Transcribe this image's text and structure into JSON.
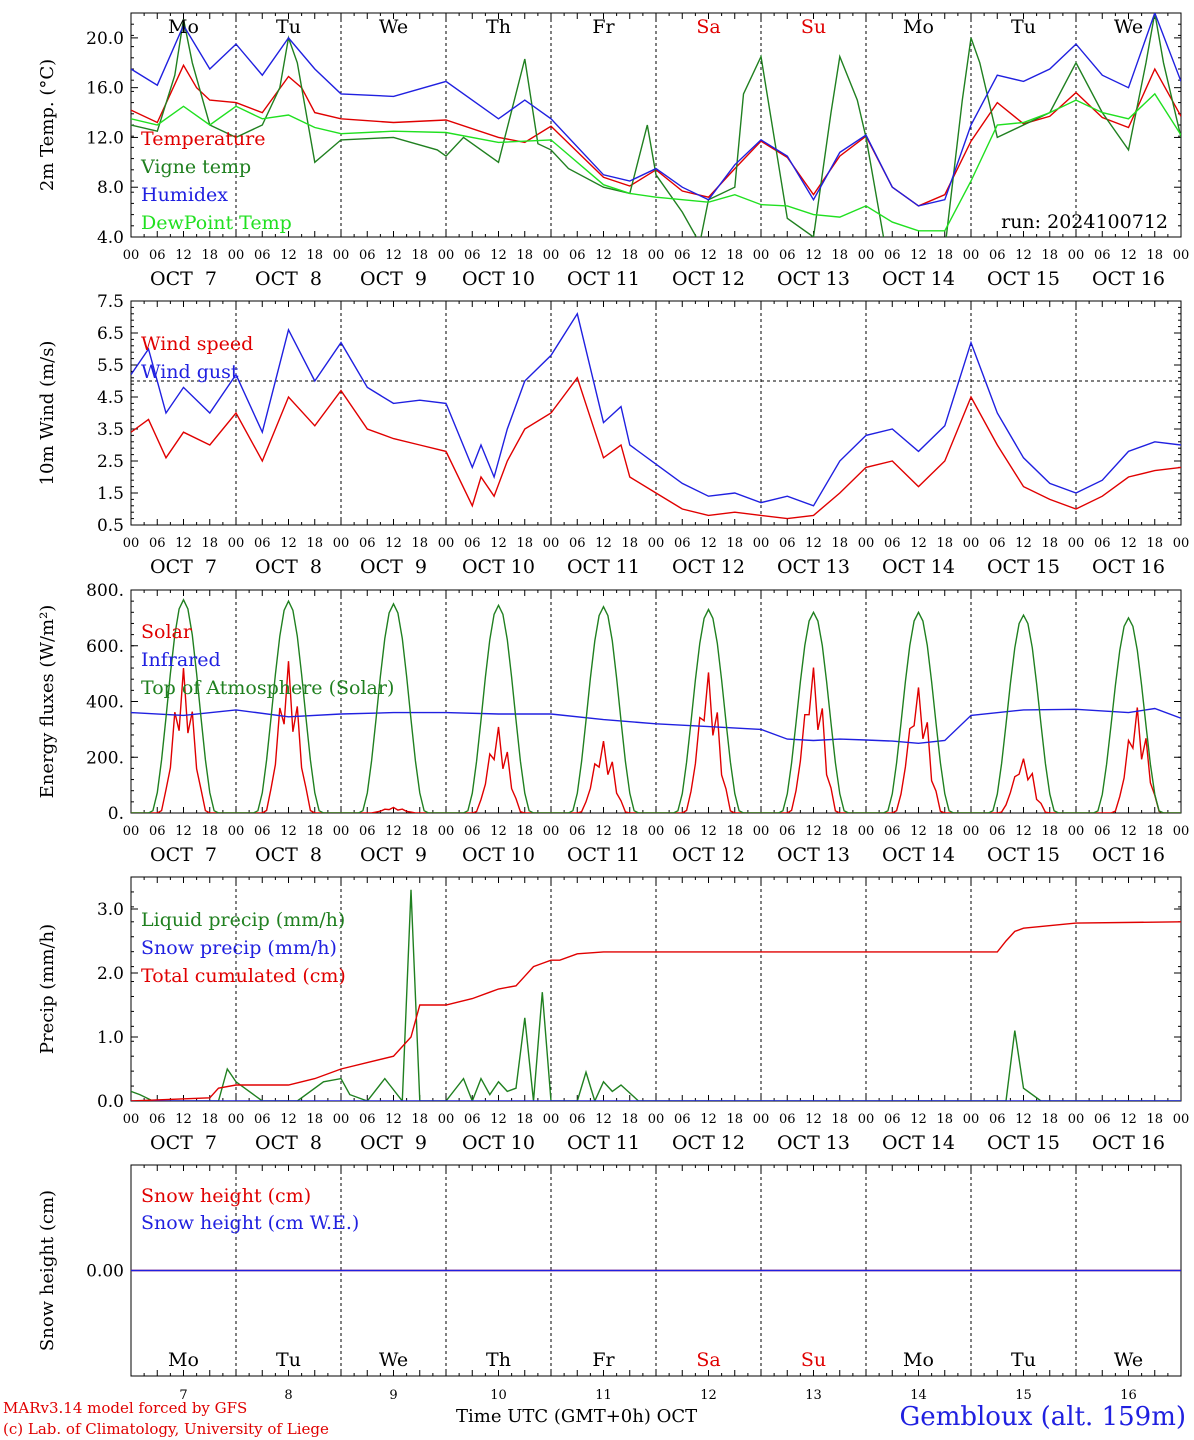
{
  "footer": {
    "credit_line1": "MARv3.14 model forced by GFS",
    "credit_line2": "(c) Lab. of Climatology, University of Liege",
    "x_title": "Time UTC (GMT+0h) OCT",
    "station": "Gembloux (alt. 159m)",
    "run": "run: 2024100712"
  },
  "weekdays": [
    {
      "label": "Mo",
      "color": "#000000"
    },
    {
      "label": "Tu",
      "color": "#000000"
    },
    {
      "label": "We",
      "color": "#000000"
    },
    {
      "label": "Th",
      "color": "#000000"
    },
    {
      "label": "Fr",
      "color": "#000000"
    },
    {
      "label": "Sa",
      "color": "#e00000"
    },
    {
      "label": "Su",
      "color": "#e00000"
    },
    {
      "label": "Mo",
      "color": "#000000"
    },
    {
      "label": "Tu",
      "color": "#000000"
    },
    {
      "label": "We",
      "color": "#000000"
    }
  ],
  "date_labels": [
    "OCT  7",
    "OCT  8",
    "OCT  9",
    "OCT 10",
    "OCT 11",
    "OCT 12",
    "OCT 13",
    "OCT 14",
    "OCT 15",
    "OCT 16"
  ],
  "day_numbers": [
    "7",
    "8",
    "9",
    "10",
    "11",
    "12",
    "13",
    "14",
    "15",
    "16"
  ],
  "hour_labels": [
    "00",
    "06",
    "12",
    "18"
  ],
  "final_hour_label": "00",
  "chart_data": [
    {
      "type": "line",
      "ylabel": "2m Temp. (°C)",
      "ylim": [
        4.0,
        22.0
      ],
      "ytick_labels": [
        "4.0",
        "8.0",
        "12.0",
        "16.0",
        "20.0"
      ],
      "x_unit": "hours since 2024-10-07 00 UTC",
      "xlim": [
        0,
        240
      ],
      "series": [
        {
          "name": "Temperature",
          "color": "#e00000",
          "x": [
            0,
            6,
            12,
            15,
            18,
            24,
            30,
            36,
            39,
            42,
            48,
            60,
            72,
            84,
            90,
            96,
            108,
            114,
            120,
            126,
            132,
            138,
            144,
            150,
            156,
            162,
            168,
            174,
            180,
            186,
            192,
            198,
            204,
            210,
            216,
            222,
            228,
            234,
            240
          ],
          "y": [
            14.2,
            13.2,
            17.8,
            16.0,
            15.0,
            14.8,
            14.0,
            16.9,
            16.0,
            14.0,
            13.5,
            13.2,
            13.4,
            12.0,
            11.6,
            12.9,
            8.8,
            8.1,
            9.4,
            7.7,
            7.2,
            9.5,
            11.7,
            10.4,
            7.4,
            10.5,
            12.1,
            8.0,
            6.5,
            7.4,
            11.7,
            14.8,
            13.1,
            13.7,
            15.6,
            13.6,
            12.8,
            17.5,
            13.7
          ]
        },
        {
          "name": "Vigne temp",
          "color": "#208020",
          "x": [
            0,
            6,
            10,
            12,
            14,
            18,
            24,
            30,
            34,
            36,
            38,
            42,
            48,
            60,
            70,
            72,
            76,
            84,
            90,
            93,
            96,
            100,
            108,
            114,
            118,
            120,
            126,
            130,
            132,
            138,
            140,
            144,
            150,
            156,
            160,
            162,
            166,
            168,
            172,
            174,
            180,
            186,
            190,
            192,
            194,
            198,
            204,
            210,
            216,
            222,
            228,
            232,
            234,
            236,
            240
          ],
          "y": [
            13.0,
            12.5,
            17.0,
            21.5,
            18.0,
            13.0,
            12.0,
            13.0,
            16.0,
            20.0,
            18.0,
            10.0,
            11.8,
            12.0,
            11.0,
            10.5,
            12.0,
            10.0,
            18.3,
            11.5,
            11.0,
            9.5,
            8.0,
            7.5,
            13.0,
            9.0,
            6.0,
            3.5,
            7.0,
            8.0,
            15.5,
            18.5,
            5.5,
            4.0,
            14.0,
            18.5,
            15.0,
            12.0,
            4.0,
            3.0,
            3.0,
            3.0,
            15.0,
            20.0,
            18.0,
            12.0,
            13.0,
            14.0,
            18.0,
            14.0,
            11.0,
            18.0,
            22.0,
            18.0,
            12.0
          ]
        },
        {
          "name": "Humidex",
          "color": "#2020e0",
          "x": [
            0,
            6,
            12,
            18,
            24,
            30,
            36,
            42,
            48,
            60,
            72,
            84,
            90,
            96,
            108,
            114,
            120,
            126,
            132,
            138,
            144,
            150,
            156,
            162,
            168,
            174,
            180,
            186,
            192,
            198,
            204,
            210,
            216,
            222,
            228,
            234,
            240
          ],
          "y": [
            17.5,
            16.2,
            21.0,
            17.5,
            19.5,
            17.0,
            20.0,
            17.5,
            15.5,
            15.3,
            16.5,
            13.5,
            15.0,
            13.5,
            9.0,
            8.5,
            9.5,
            8.0,
            7.0,
            9.8,
            11.8,
            10.5,
            7.0,
            10.8,
            12.2,
            8.0,
            6.5,
            7.0,
            13.0,
            17.0,
            16.5,
            17.5,
            19.5,
            17.0,
            16.0,
            22.0,
            16.5
          ]
        },
        {
          "name": "DewPoint Temp",
          "color": "#20e020",
          "x": [
            0,
            6,
            12,
            18,
            24,
            30,
            36,
            42,
            48,
            60,
            72,
            84,
            96,
            108,
            114,
            120,
            126,
            132,
            138,
            144,
            150,
            156,
            162,
            168,
            174,
            180,
            186,
            192,
            198,
            204,
            210,
            216,
            222,
            228,
            234,
            240
          ],
          "y": [
            13.5,
            13.0,
            14.5,
            13.0,
            14.5,
            13.5,
            13.8,
            12.8,
            12.3,
            12.5,
            12.4,
            11.6,
            11.8,
            8.2,
            7.5,
            7.2,
            7.0,
            6.8,
            7.4,
            6.6,
            6.5,
            5.8,
            5.6,
            6.5,
            5.2,
            4.5,
            4.5,
            8.5,
            13.0,
            13.2,
            14.0,
            15.0,
            14.0,
            13.5,
            15.5,
            12.2
          ]
        }
      ]
    },
    {
      "type": "line",
      "ylabel": "10m Wind (m/s)",
      "ylim": [
        0.5,
        7.5
      ],
      "ytick_labels": [
        "0.5",
        "1.5",
        "2.5",
        "3.5",
        "4.5",
        "5.5",
        "6.5",
        "7.5"
      ],
      "reference_line": 5.0,
      "x_unit": "hours since 2024-10-07 00 UTC",
      "xlim": [
        0,
        240
      ],
      "series": [
        {
          "name": "Wind speed",
          "color": "#e00000",
          "x": [
            0,
            4,
            8,
            12,
            18,
            24,
            30,
            36,
            42,
            48,
            54,
            60,
            66,
            72,
            78,
            80,
            83,
            86,
            90,
            96,
            102,
            108,
            112,
            114,
            120,
            126,
            132,
            138,
            144,
            150,
            156,
            162,
            168,
            174,
            180,
            186,
            192,
            198,
            204,
            210,
            216,
            222,
            228,
            234,
            240
          ],
          "y": [
            3.4,
            3.8,
            2.6,
            3.4,
            3.0,
            4.0,
            2.5,
            4.5,
            3.6,
            4.7,
            3.5,
            3.2,
            3.0,
            2.8,
            1.1,
            2.0,
            1.4,
            2.5,
            3.5,
            4.0,
            5.1,
            2.6,
            3.0,
            2.0,
            1.5,
            1.0,
            0.8,
            0.9,
            0.8,
            0.7,
            0.8,
            1.5,
            2.3,
            2.5,
            1.7,
            2.5,
            4.5,
            3.0,
            1.7,
            1.3,
            1.0,
            1.4,
            2.0,
            2.2,
            2.3
          ]
        },
        {
          "name": "Wind gust",
          "color": "#2020e0",
          "x": [
            0,
            4,
            8,
            12,
            18,
            24,
            30,
            36,
            42,
            48,
            54,
            60,
            66,
            72,
            78,
            80,
            83,
            86,
            90,
            96,
            102,
            108,
            112,
            114,
            120,
            126,
            132,
            138,
            144,
            150,
            156,
            162,
            168,
            174,
            180,
            186,
            192,
            198,
            204,
            210,
            216,
            222,
            228,
            234,
            240
          ],
          "y": [
            5.2,
            6.0,
            4.0,
            4.8,
            4.0,
            5.2,
            3.4,
            6.6,
            5.0,
            6.2,
            4.8,
            4.3,
            4.4,
            4.3,
            2.3,
            3.0,
            2.0,
            3.5,
            5.0,
            5.8,
            7.1,
            3.7,
            4.2,
            3.0,
            2.4,
            1.8,
            1.4,
            1.5,
            1.2,
            1.4,
            1.1,
            2.5,
            3.3,
            3.5,
            2.8,
            3.6,
            6.2,
            4.0,
            2.6,
            1.8,
            1.5,
            1.9,
            2.8,
            3.1,
            3.0
          ]
        }
      ]
    },
    {
      "type": "line",
      "ylabel": "Energy fluxes (W/m²)",
      "ylim": [
        0,
        800
      ],
      "ytick_labels": [
        "0.",
        "200.",
        "400.",
        "600.",
        "800."
      ],
      "x_unit": "hours since 2024-10-07 00 UTC",
      "xlim": [
        0,
        240
      ],
      "series": [
        {
          "name": "Solar",
          "color": "#e00000",
          "peak_hours": [
            12,
            36,
            60,
            84,
            108,
            132,
            156,
            180,
            204,
            230
          ],
          "peak_values": [
            520,
            545,
            20,
            310,
            260,
            510,
            530,
            460,
            200,
            380
          ]
        },
        {
          "name": "Infrared",
          "color": "#2020e0",
          "x": [
            0,
            12,
            24,
            36,
            48,
            60,
            72,
            84,
            96,
            108,
            120,
            132,
            144,
            150,
            156,
            162,
            168,
            174,
            180,
            186,
            192,
            204,
            216,
            228,
            234,
            240
          ],
          "y": [
            360,
            350,
            370,
            345,
            355,
            360,
            360,
            355,
            355,
            335,
            320,
            310,
            300,
            265,
            260,
            265,
            262,
            258,
            250,
            260,
            350,
            370,
            372,
            360,
            375,
            340
          ]
        },
        {
          "name": "Top of Atmosphere (Solar)",
          "color": "#208020",
          "peak_hours": [
            12,
            36,
            60,
            84,
            108,
            132,
            156,
            180,
            204,
            228
          ],
          "peak_values": [
            765,
            760,
            750,
            745,
            740,
            730,
            720,
            720,
            710,
            700
          ]
        }
      ]
    },
    {
      "type": "line",
      "ylabel": "Precip (mm/h)",
      "ylim": [
        0,
        3.5
      ],
      "ytick_labels": [
        "0.0",
        "1.0",
        "2.0",
        "3.0"
      ],
      "x_unit": "hours since 2024-10-07 00 UTC",
      "xlim": [
        0,
        240
      ],
      "series": [
        {
          "name": "Liquid precip (mm/h)",
          "color": "#208020",
          "x": [
            0,
            2,
            5,
            8,
            20,
            22,
            24,
            30,
            38,
            44,
            48,
            50,
            54,
            58,
            62,
            64,
            66,
            72,
            76,
            78,
            80,
            82,
            84,
            86,
            88,
            90,
            92,
            94,
            96,
            98,
            100,
            102,
            104,
            106,
            108,
            110,
            112,
            116,
            118,
            120,
            200,
            202,
            204,
            208,
            240
          ],
          "y": [
            0.15,
            0.1,
            0.0,
            0.0,
            0.0,
            0.5,
            0.3,
            0.0,
            0.0,
            0.3,
            0.35,
            0.1,
            0.0,
            0.35,
            0.0,
            3.3,
            0.0,
            0.0,
            0.35,
            0.0,
            0.35,
            0.1,
            0.3,
            0.15,
            0.2,
            1.3,
            0.0,
            1.7,
            0.0,
            0.0,
            0.0,
            0.0,
            0.45,
            0.0,
            0.3,
            0.15,
            0.25,
            0.0,
            0.0,
            0.0,
            0.0,
            1.1,
            0.2,
            0.0,
            0.0
          ]
        },
        {
          "name": "Snow precip (mm/h)",
          "color": "#2020e0",
          "x": [
            0,
            240
          ],
          "y": [
            0.0,
            0.0
          ]
        },
        {
          "name": "Total cumulated (cm)",
          "color": "#e00000",
          "x": [
            0,
            18,
            20,
            24,
            36,
            42,
            48,
            54,
            60,
            64,
            66,
            72,
            78,
            82,
            84,
            88,
            90,
            92,
            94,
            96,
            98,
            102,
            108,
            198,
            200,
            202,
            204,
            216,
            240
          ],
          "y": [
            0.0,
            0.05,
            0.2,
            0.25,
            0.25,
            0.35,
            0.5,
            0.6,
            0.7,
            1.0,
            1.5,
            1.5,
            1.6,
            1.7,
            1.75,
            1.8,
            1.95,
            2.1,
            2.15,
            2.2,
            2.2,
            2.3,
            2.33,
            2.33,
            2.5,
            2.65,
            2.7,
            2.78,
            2.8
          ]
        }
      ]
    },
    {
      "type": "line",
      "ylabel": "Snow height (cm)",
      "ytick_labels": [
        "0.00"
      ],
      "x_unit": "hours since 2024-10-07 00 UTC",
      "xlim": [
        0,
        240
      ],
      "series": [
        {
          "name": "Snow height (cm)",
          "color": "#e00000",
          "x": [
            0,
            240
          ],
          "y": [
            0.0,
            0.0
          ]
        },
        {
          "name": "Snow height (cm W.E.)",
          "color": "#2020e0",
          "x": [
            0,
            240
          ],
          "y": [
            0.0,
            0.0
          ]
        }
      ]
    }
  ]
}
